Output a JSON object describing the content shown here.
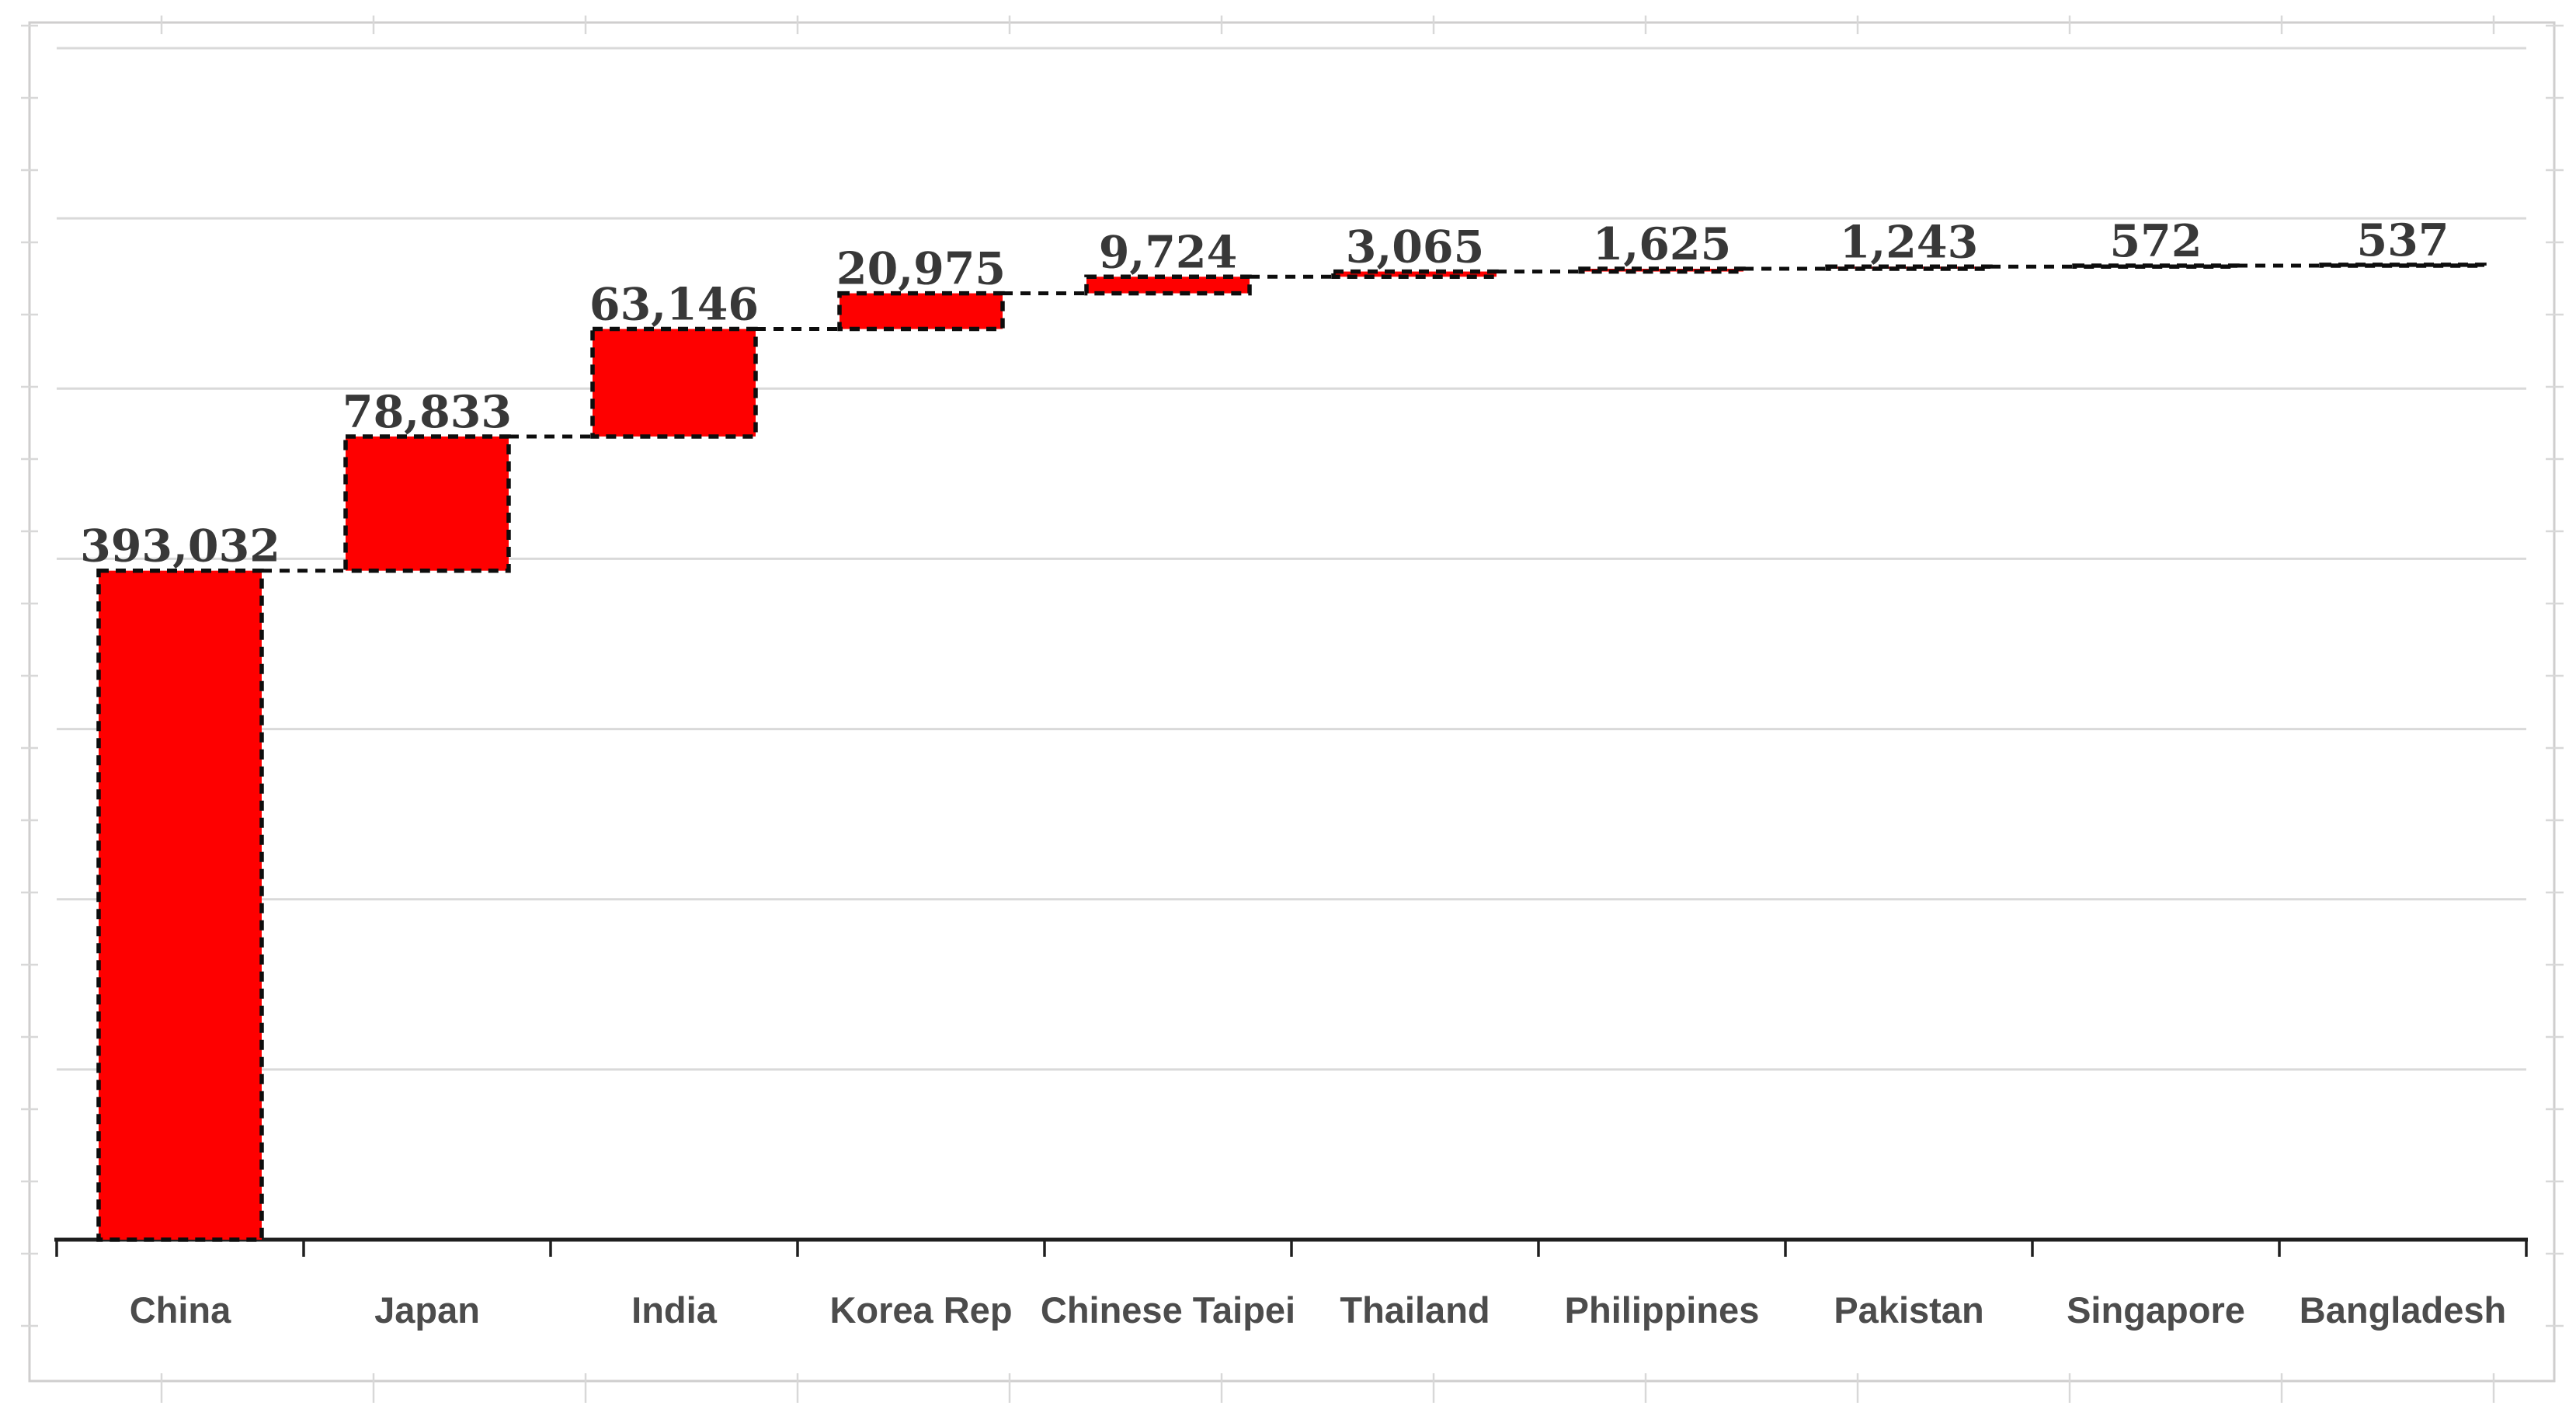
{
  "chart_data": {
    "type": "bar",
    "subtype": "waterfall",
    "categories": [
      "China",
      "Japan",
      "India",
      "Korea Rep",
      "Chinese Taipei",
      "Thailand",
      "Philippines",
      "Pakistan",
      "Singapore",
      "Bangladesh"
    ],
    "values": [
      393032,
      78833,
      63146,
      20975,
      9724,
      3065,
      1625,
      1243,
      572,
      537
    ],
    "data_labels": [
      "393,032",
      "78,833",
      "63,146",
      "20,975",
      "9,724",
      "3,065",
      "1,625",
      "1,243",
      "572",
      "537"
    ],
    "xlabel": "",
    "ylabel": "",
    "ylim": [
      0,
      700000
    ],
    "gridline_interval": 100000,
    "grid": true,
    "legend": false,
    "cumulative_totals": [
      393032,
      471865,
      535011,
      555986,
      565710,
      568775,
      570400,
      571643,
      572215,
      572752
    ]
  },
  "style": {
    "bar_fill": "#fe0000",
    "bar_border": "#0d0d0d",
    "connector_color": "#0d0d0d",
    "gridline_color": "#d9d9d9",
    "axis_color": "#1f1f1f",
    "tick_color": "#1f1f1f",
    "data_label_color": "#383838",
    "category_label_color": "#4c4c4c",
    "chart_border_color": "#cfcece",
    "worksheet_mark_color": "#d8d8d8",
    "background": "#ffffff"
  }
}
